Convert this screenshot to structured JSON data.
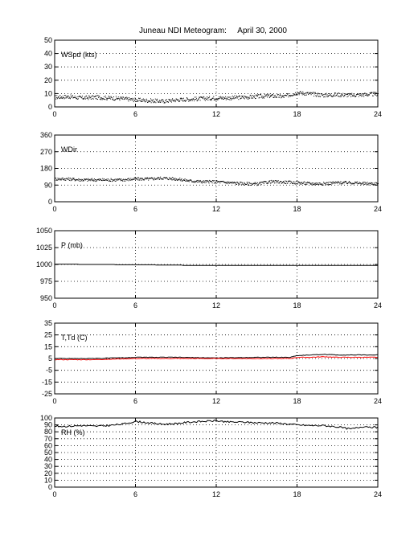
{
  "figure": {
    "title": "Juneau NDI Meteogram:     April 30, 2000"
  },
  "chart_data": [
    {
      "type": "scatter",
      "label": "WSpd (kts)",
      "xlim": [
        0,
        24
      ],
      "ylim": [
        0,
        50
      ],
      "xticks": [
        0,
        6,
        12,
        18,
        24
      ],
      "yticks": [
        0,
        10,
        20,
        30,
        40,
        50
      ],
      "grid": true,
      "series": [
        {
          "color": "#000000",
          "x": [
            0,
            1,
            2,
            3,
            4,
            5,
            6,
            7,
            8,
            9,
            10,
            11,
            12,
            13,
            14,
            15,
            16,
            17,
            18,
            19,
            20,
            21,
            22,
            23,
            24
          ],
          "y": [
            7.5,
            8,
            7,
            7.5,
            7,
            6.5,
            5.5,
            5,
            4.5,
            5.5,
            6,
            6.5,
            7,
            7,
            7.5,
            8,
            8.5,
            8,
            11,
            10,
            9,
            9.5,
            9,
            9.5,
            10
          ],
          "noise": 1.5
        }
      ]
    },
    {
      "type": "scatter",
      "label": "WDir",
      "xlim": [
        0,
        24
      ],
      "ylim": [
        0,
        360
      ],
      "xticks": [
        0,
        6,
        12,
        18,
        24
      ],
      "yticks": [
        0,
        90,
        180,
        270,
        360
      ],
      "grid": true,
      "series": [
        {
          "color": "#000000",
          "x": [
            0,
            1,
            2,
            3,
            4,
            5,
            6,
            7,
            8,
            9,
            10,
            11,
            12,
            13,
            14,
            15,
            16,
            17,
            18,
            19,
            20,
            21,
            22,
            23,
            24
          ],
          "y": [
            125,
            125,
            120,
            120,
            120,
            120,
            125,
            125,
            130,
            125,
            115,
            110,
            110,
            105,
            100,
            98,
            110,
            108,
            105,
            100,
            100,
            105,
            105,
            100,
            100
          ],
          "noise": 8
        }
      ]
    },
    {
      "type": "line",
      "label": "P (mb)",
      "xlim": [
        0,
        24
      ],
      "ylim": [
        950,
        1050
      ],
      "xticks": [
        0,
        6,
        12,
        18,
        24
      ],
      "yticks": [
        950,
        975,
        1000,
        1025,
        1050
      ],
      "grid": true,
      "series": [
        {
          "color": "#000000",
          "x": [
            0,
            1.8,
            1.8,
            4.5,
            4.5,
            7.5,
            7.5,
            9.5,
            9.5,
            24
          ],
          "y": [
            1000.5,
            1000.5,
            1000,
            1000,
            999.5,
            999.5,
            999,
            999,
            998.5,
            998.5
          ]
        }
      ]
    },
    {
      "type": "line",
      "label": "T,Td (C)",
      "xlim": [
        0,
        24
      ],
      "ylim": [
        -25,
        35
      ],
      "xticks": [
        0,
        6,
        12,
        18,
        24
      ],
      "yticks": [
        -25,
        -15,
        -5,
        5,
        15,
        25,
        35
      ],
      "grid": true,
      "series": [
        {
          "name": "T",
          "color": "#000000",
          "x": [
            0,
            3,
            6,
            9,
            12,
            15,
            17.5,
            18,
            19,
            20,
            21,
            22,
            23,
            24
          ],
          "y": [
            5,
            5,
            6,
            6,
            5.5,
            6,
            6,
            7.5,
            8,
            8.5,
            8,
            8,
            8,
            8
          ]
        },
        {
          "name": "Td",
          "color": "#ff0000",
          "x": [
            0,
            3,
            6,
            9,
            12,
            15,
            17.5,
            18,
            19,
            20,
            21,
            22,
            23,
            24
          ],
          "y": [
            4,
            4,
            5,
            5,
            5,
            5,
            5,
            6,
            6,
            6.5,
            6,
            6,
            6,
            6
          ]
        }
      ]
    },
    {
      "type": "line",
      "label": "RH (%)",
      "xlim": [
        0,
        24
      ],
      "ylim": [
        0,
        100
      ],
      "xticks": [
        0,
        6,
        12,
        18,
        24
      ],
      "yticks": [
        0,
        10,
        20,
        30,
        40,
        50,
        60,
        70,
        80,
        90,
        100
      ],
      "grid": true,
      "series": [
        {
          "color": "#000000",
          "x": [
            0,
            1,
            2,
            3,
            4,
            5,
            6,
            7,
            8,
            9,
            10,
            11,
            12,
            13,
            14,
            15,
            16,
            17,
            18,
            19,
            20,
            21,
            22,
            23,
            24
          ],
          "y": [
            88,
            88,
            89,
            88,
            89,
            91,
            95,
            93,
            91,
            92,
            94,
            95,
            96,
            94,
            94,
            93,
            93,
            92,
            90,
            89,
            89,
            87,
            84,
            88,
            86
          ]
        }
      ]
    }
  ]
}
